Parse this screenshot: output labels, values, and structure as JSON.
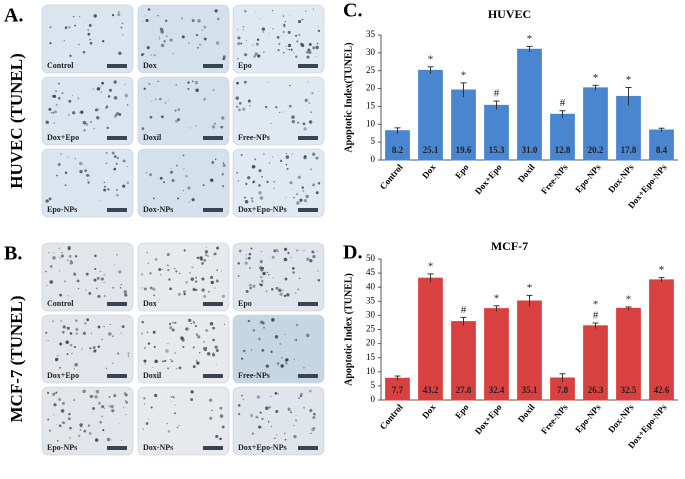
{
  "panels": [
    {
      "letter": "A.",
      "label": "HUVEC (TUNEL)",
      "images": [
        "Control",
        "Dox",
        "Epo",
        "Dox+Epo",
        "Doxil",
        "Free-NPs",
        "Epo-NPs",
        "Dox-NPs",
        "Dox+Epo-NPs"
      ]
    },
    {
      "letter": "B.",
      "label": "MCF-7 (TUNEL)",
      "images": [
        "Control",
        "Dox",
        "Epo",
        "Dox+Epo",
        "Doxil",
        "Free-NPs",
        "Epo-NPs",
        "Dox-NPs",
        "Dox+Epo-NPs"
      ]
    }
  ],
  "chart_data": [
    {
      "type": "bar",
      "letter": "C.",
      "title": "HUVEC",
      "ylabel": "Apoptotic Index(TUNEL)",
      "color": "#4a86d0",
      "categories": [
        "Control",
        "Dox",
        "Epo",
        "Dox+Epo",
        "Doxil",
        "Free-NPs",
        "Epo-NPs",
        "Dox-NPs",
        "Dox+Epo-NPs"
      ],
      "values": [
        8.2,
        25.1,
        19.6,
        15.3,
        31.0,
        12.8,
        20.2,
        17.8,
        8.4
      ],
      "value_labels": [
        "8.2",
        "25.1",
        "19.6",
        "15.3",
        "31.0",
        "12.8",
        "20.2",
        "17.8",
        "8.4"
      ],
      "errors": [
        0.8,
        1.0,
        2.0,
        1.2,
        0.8,
        1.0,
        0.7,
        2.5,
        0.5
      ],
      "annotations": [
        null,
        [
          "*"
        ],
        [
          "*"
        ],
        [
          "#"
        ],
        [
          "*"
        ],
        [
          "#"
        ],
        [
          "*"
        ],
        [
          "*"
        ],
        null
      ],
      "ylim": [
        0,
        35
      ],
      "yticks": [
        0,
        5,
        10,
        15,
        20,
        25,
        30,
        35
      ]
    },
    {
      "type": "bar",
      "letter": "D.",
      "title": "MCF-7",
      "ylabel": "Apoptotic Index (TUNEL)",
      "color": "#d94141",
      "categories": [
        "Control",
        "Dox",
        "Epo",
        "Dox+Epo",
        "Doxil",
        "Free-NPs",
        "Epo-NPs",
        "Dox-NPs",
        "Dox+Epo-NPs"
      ],
      "values": [
        7.7,
        43.2,
        27.8,
        32.4,
        35.1,
        7.8,
        26.3,
        32.5,
        42.6
      ],
      "value_labels": [
        "7.7",
        "43.2",
        "27.8",
        "32.4",
        "35.1",
        "7.8",
        "26.3",
        "32.5",
        "42.6"
      ],
      "errors": [
        0.8,
        1.5,
        1.5,
        1.0,
        2.0,
        1.5,
        1.0,
        0.5,
        0.8
      ],
      "annotations": [
        null,
        [
          "*"
        ],
        [
          "#"
        ],
        [
          "*"
        ],
        [
          "*"
        ],
        null,
        [
          "*",
          "#"
        ],
        [
          "*"
        ],
        [
          "*"
        ]
      ],
      "ylim": [
        0,
        50
      ],
      "yticks": [
        0,
        5,
        10,
        15,
        20,
        25,
        30,
        35,
        40,
        45,
        50
      ]
    }
  ]
}
